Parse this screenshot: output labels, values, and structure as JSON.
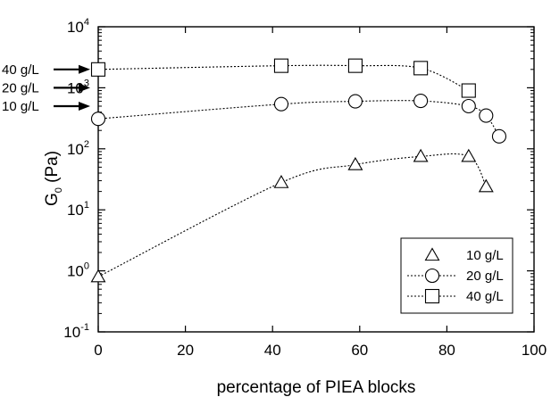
{
  "chart_data": {
    "type": "scatter",
    "xlabel": "percentage of PIEA blocks",
    "ylabel": {
      "main": "G",
      "sub": "0",
      "unit": "(Pa)"
    },
    "xlim": [
      0,
      100
    ],
    "ylim": [
      0.1,
      10000
    ],
    "yscale": "log",
    "grid": false,
    "legend_position": "bottom-right",
    "x_ticks": [
      0,
      20,
      40,
      60,
      80,
      100
    ],
    "y_ticks": [
      {
        "value": 0.1,
        "base": "10",
        "exp": "-1"
      },
      {
        "value": 1,
        "base": "10",
        "exp": "0"
      },
      {
        "value": 10,
        "base": "10",
        "exp": "1"
      },
      {
        "value": 100,
        "base": "10",
        "exp": "2"
      },
      {
        "value": 1000,
        "base": "10",
        "exp": "3"
      },
      {
        "value": 10000,
        "base": "10",
        "exp": "4"
      }
    ],
    "series": [
      {
        "name": "10 g/L",
        "marker": "triangle",
        "x": [
          0,
          42,
          59,
          74,
          85,
          89
        ],
        "y": [
          0.8,
          28,
          55,
          75,
          75,
          24
        ]
      },
      {
        "name": "20 g/L",
        "marker": "circle",
        "x": [
          0,
          42,
          59,
          74,
          85,
          89,
          92
        ],
        "y": [
          310,
          540,
          600,
          610,
          500,
          350,
          160
        ]
      },
      {
        "name": "40 g/L",
        "marker": "square",
        "x": [
          0,
          42,
          59,
          74,
          85
        ],
        "y": [
          2000,
          2300,
          2300,
          2100,
          900
        ]
      }
    ],
    "annotations": [
      {
        "label": "40 g/L",
        "y": 2000
      },
      {
        "label": "20 g/L",
        "y": 1000
      },
      {
        "label": "10 g/L",
        "y": 500
      }
    ]
  }
}
